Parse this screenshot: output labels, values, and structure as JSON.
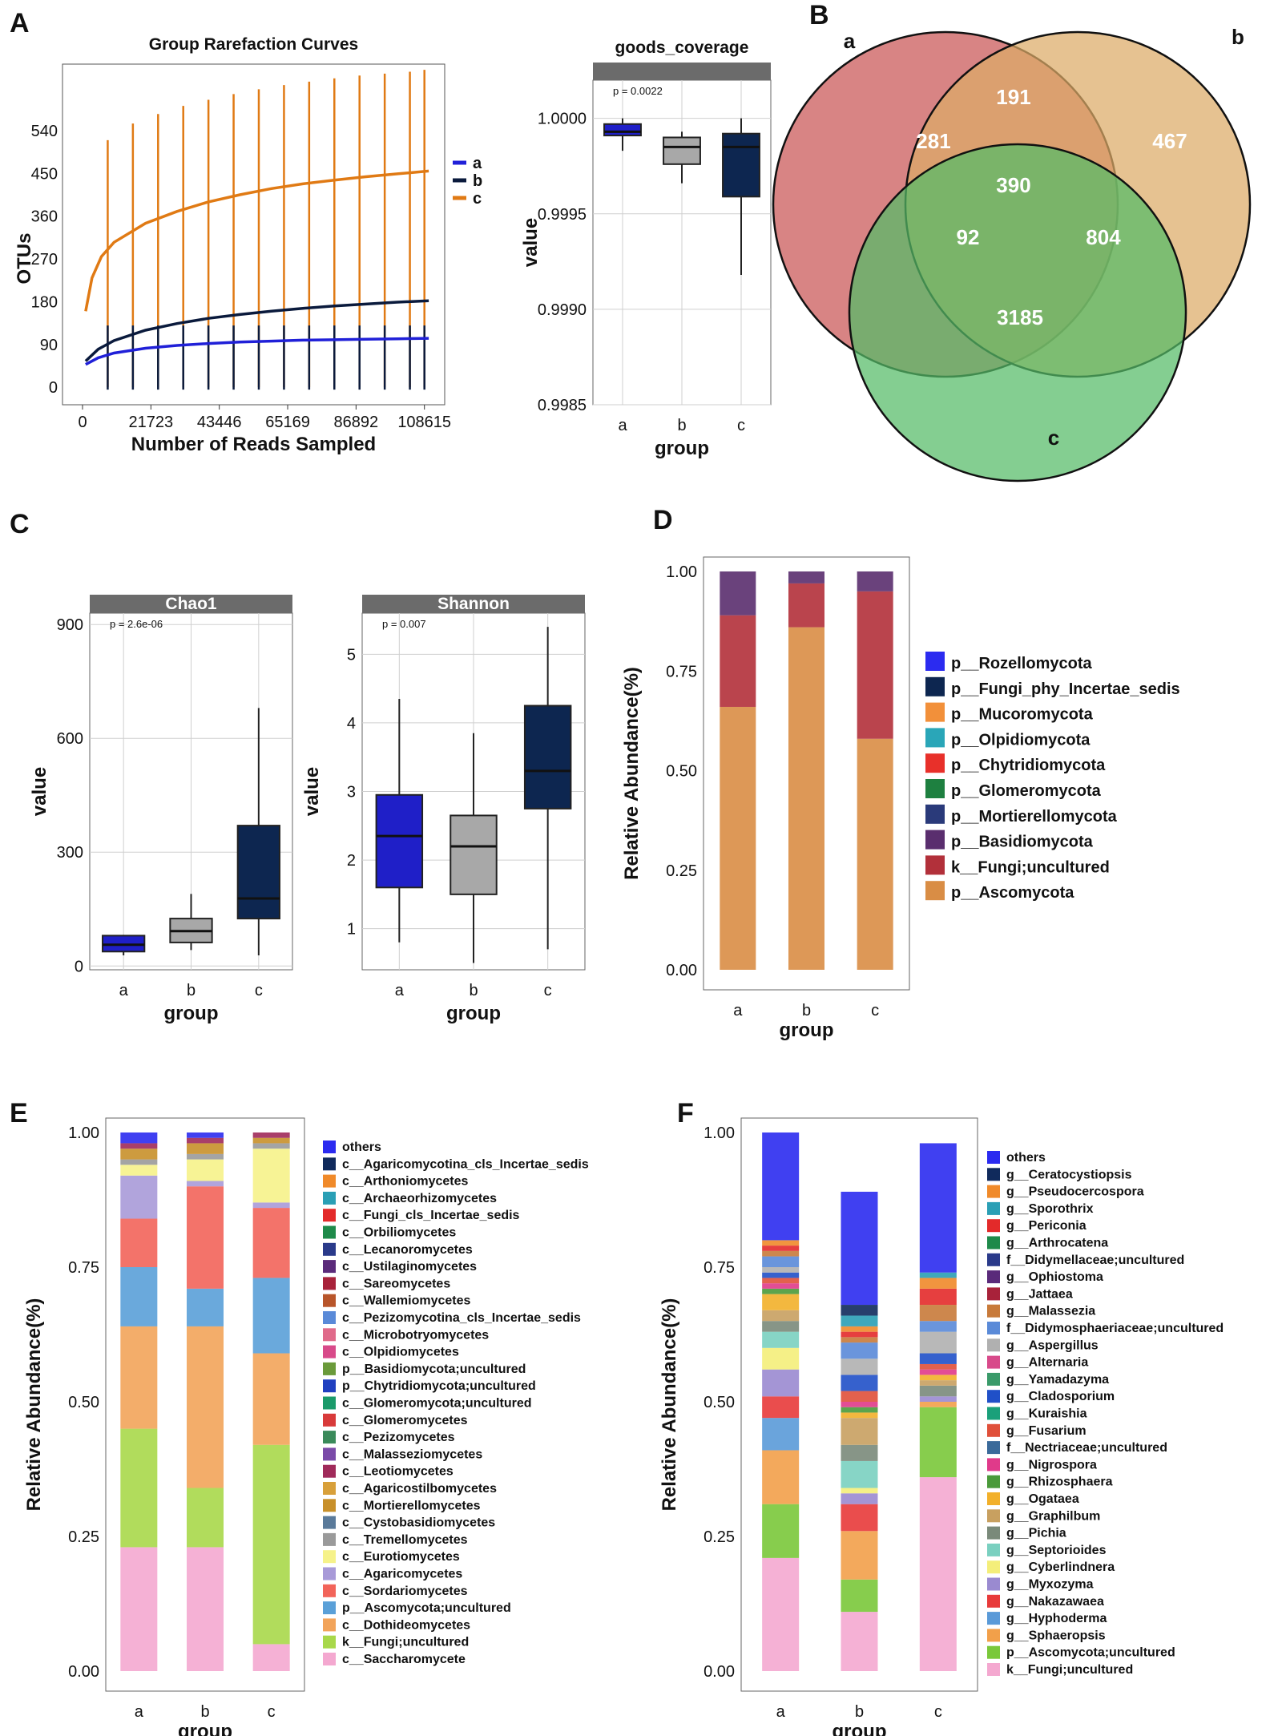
{
  "panels": [
    "A",
    "B",
    "C",
    "D",
    "E",
    "F"
  ],
  "chart_data": [
    {
      "id": "A1",
      "type": "line",
      "title": "Group Rarefaction Curves",
      "xlabel": "Number of Reads Sampled",
      "ylabel": "OTUs",
      "x_ticks": [
        0,
        21723,
        43446,
        65169,
        86892,
        108615
      ],
      "y_ticks": [
        0,
        90,
        180,
        270,
        360,
        450,
        540
      ],
      "xlim": [
        0,
        112000
      ],
      "ylim": [
        -20,
        680
      ],
      "series": [
        {
          "name": "a",
          "color": "#2020d8",
          "x": [
            1000,
            5000,
            10000,
            20000,
            30000,
            40000,
            50000,
            60000,
            70000,
            80000,
            90000,
            100000,
            110000
          ],
          "y": [
            48,
            62,
            72,
            82,
            88,
            92,
            95,
            97,
            99,
            100,
            101,
            102,
            103
          ]
        },
        {
          "name": "b",
          "color": "#0a1a3c",
          "x": [
            1000,
            5000,
            10000,
            20000,
            30000,
            40000,
            50000,
            60000,
            70000,
            80000,
            90000,
            100000,
            110000
          ],
          "y": [
            55,
            80,
            98,
            120,
            134,
            145,
            153,
            160,
            166,
            171,
            175,
            179,
            182
          ]
        },
        {
          "name": "c",
          "color": "#e07a14",
          "x": [
            1000,
            3000,
            6000,
            10000,
            20000,
            30000,
            40000,
            50000,
            60000,
            70000,
            80000,
            90000,
            100000,
            110000
          ],
          "y": [
            160,
            230,
            275,
            305,
            345,
            370,
            390,
            405,
            418,
            428,
            436,
            443,
            449,
            455
          ]
        }
      ],
      "error_bars": {
        "x": [
          8000,
          16000,
          24000,
          32000,
          40000,
          48000,
          56000,
          64000,
          72000,
          80000,
          88000,
          96000,
          104000,
          108615
        ],
        "c_top": [
          520,
          555,
          575,
          592,
          605,
          617,
          627,
          636,
          643,
          650,
          656,
          660,
          664,
          668
        ],
        "bottom": [
          0,
          0,
          0,
          0,
          0,
          0,
          0,
          0,
          0,
          0,
          0,
          0,
          0,
          0
        ]
      }
    },
    {
      "id": "A2",
      "type": "box",
      "title": "goods_coverage",
      "xlabel": "group",
      "ylabel": "value",
      "annotation": "p = 0.0022",
      "categories": [
        "a",
        "b",
        "c"
      ],
      "y_ticks": [
        "1.0000",
        "0.9995",
        "0.9990",
        "0.9985"
      ],
      "ylim": [
        0.9985,
        1.0002
      ],
      "boxes": [
        {
          "name": "a",
          "color": "#1f1fc8",
          "min": 0.99983,
          "q1": 0.99991,
          "median": 0.99993,
          "q3": 0.99997,
          "max": 1.0
        },
        {
          "name": "b",
          "color": "#a8a8a8",
          "min": 0.99966,
          "q1": 0.99976,
          "median": 0.99985,
          "q3": 0.9999,
          "max": 0.99993
        },
        {
          "name": "c",
          "color": "#0d2650",
          "min": 0.99918,
          "q1": 0.99959,
          "median": 0.99985,
          "q3": 0.99992,
          "max": 1.0
        }
      ]
    },
    {
      "id": "B",
      "type": "venn",
      "sets": [
        {
          "name": "a",
          "color": "#c95454"
        },
        {
          "name": "b",
          "color": "#ddaa66"
        },
        {
          "name": "c",
          "color": "#55bb66"
        }
      ],
      "regions": [
        {
          "key": "a_only",
          "value": "281"
        },
        {
          "key": "ab",
          "value": "191"
        },
        {
          "key": "b_only",
          "value": "467"
        },
        {
          "key": "abc",
          "value": "390"
        },
        {
          "key": "ac",
          "value": "92"
        },
        {
          "key": "bc",
          "value": "804"
        },
        {
          "key": "c_only",
          "value": "3185"
        }
      ]
    },
    {
      "id": "C1",
      "type": "box",
      "title": "Chao1",
      "xlabel": "group",
      "ylabel": "value",
      "annotation": "p = 2.6e-06",
      "categories": [
        "a",
        "b",
        "c"
      ],
      "y_ticks": [
        0,
        300,
        600,
        900
      ],
      "ylim": [
        -10,
        930
      ],
      "boxes": [
        {
          "name": "a",
          "color": "#1f1fc8",
          "min": 28,
          "q1": 38,
          "median": 56,
          "q3": 80,
          "max": 82
        },
        {
          "name": "b",
          "color": "#a8a8a8",
          "min": 42,
          "q1": 62,
          "median": 92,
          "q3": 125,
          "max": 190
        },
        {
          "name": "c",
          "color": "#0d2650",
          "min": 28,
          "q1": 125,
          "median": 178,
          "q3": 370,
          "max": 680
        }
      ]
    },
    {
      "id": "C2",
      "type": "box",
      "title": "Shannon",
      "xlabel": "group",
      "ylabel": "value",
      "annotation": "p = 0.007",
      "categories": [
        "a",
        "b",
        "c"
      ],
      "y_ticks": [
        1,
        2,
        3,
        4,
        5
      ],
      "ylim": [
        0.4,
        5.6
      ],
      "boxes": [
        {
          "name": "a",
          "color": "#1f1fc8",
          "min": 0.8,
          "q1": 1.6,
          "median": 2.35,
          "q3": 2.95,
          "max": 4.35
        },
        {
          "name": "b",
          "color": "#a8a8a8",
          "min": 0.5,
          "q1": 1.5,
          "median": 2.2,
          "q3": 2.65,
          "max": 3.85
        },
        {
          "name": "c",
          "color": "#0d2650",
          "min": 0.7,
          "q1": 2.75,
          "median": 3.3,
          "q3": 4.25,
          "max": 5.4
        }
      ]
    },
    {
      "id": "D",
      "type": "stacked_bar",
      "xlabel": "group",
      "ylabel": "Relative Abundance(%)",
      "categories": [
        "a",
        "b",
        "c"
      ],
      "y_ticks": [
        "0.00",
        "0.25",
        "0.50",
        "0.75",
        "1.00"
      ],
      "ylim": [
        0,
        1
      ],
      "legend": [
        {
          "name": "p__Rozellomycota",
          "color": "#2b2bf0"
        },
        {
          "name": "p__Fungi_phy_Incertae_sedis",
          "color": "#0d2650"
        },
        {
          "name": "p__Mucoromycota",
          "color": "#f2903a"
        },
        {
          "name": "p__Olpidiomycota",
          "color": "#2aa6b8"
        },
        {
          "name": "p__Chytridiomycota",
          "color": "#e8302a"
        },
        {
          "name": "p__Glomeromycota",
          "color": "#1e8040"
        },
        {
          "name": "p__Mortierellomycota",
          "color": "#2a3a7a"
        },
        {
          "name": "p__Basidiomycota",
          "color": "#5a2e6e"
        },
        {
          "name": "k__Fungi;uncultured",
          "color": "#b2303a"
        },
        {
          "name": "p__Ascomycota",
          "color": "#d98d45"
        }
      ],
      "stacks": [
        {
          "name": "p__Ascomycota",
          "values": [
            0.66,
            0.86,
            0.58
          ]
        },
        {
          "name": "k__Fungi;uncultured",
          "values": [
            0.23,
            0.11,
            0.37
          ]
        },
        {
          "name": "p__Basidiomycota",
          "values": [
            0.11,
            0.03,
            0.05
          ]
        }
      ]
    },
    {
      "id": "E",
      "type": "stacked_bar",
      "xlabel": "group",
      "ylabel": "Relative Abundance(%)",
      "categories": [
        "a",
        "b",
        "c"
      ],
      "y_ticks": [
        "0.00",
        "0.25",
        "0.50",
        "0.75",
        "1.00"
      ],
      "ylim": [
        0,
        1
      ],
      "legend": [
        {
          "name": "others",
          "color": "#2b2bf0"
        },
        {
          "name": "c__Agaricomycotina_cls_Incertae_sedis",
          "color": "#102a5c"
        },
        {
          "name": "c__Arthoniomycetes",
          "color": "#f08a2a"
        },
        {
          "name": "c__Archaeorhizomycetes",
          "color": "#2a9fb5"
        },
        {
          "name": "c__Fungi_cls_Incertae_sedis",
          "color": "#e32a2a"
        },
        {
          "name": "c__Orbiliomycetes",
          "color": "#1e8a4a"
        },
        {
          "name": "c__Lecanoromycetes",
          "color": "#2a3a8a"
        },
        {
          "name": "c__Ustilaginomycetes",
          "color": "#5a2a7a"
        },
        {
          "name": "c__Sareomycetes",
          "color": "#a8223a"
        },
        {
          "name": "c__Wallemiomycetes",
          "color": "#b8552a"
        },
        {
          "name": "c__Pezizomycotina_cls_Incertae_sedis",
          "color": "#5a8ad8"
        },
        {
          "name": "c__Microbotryomycetes",
          "color": "#e06a8a"
        },
        {
          "name": "c__Olpidiomycetes",
          "color": "#d84a8a"
        },
        {
          "name": "p__Basidiomycota;uncultured",
          "color": "#6a9a3a"
        },
        {
          "name": "p__Chytridiomycota;uncultured",
          "color": "#2040c0"
        },
        {
          "name": "c__Glomeromycota;uncultured",
          "color": "#1a9a6a"
        },
        {
          "name": "c__Glomeromycetes",
          "color": "#d83a3a"
        },
        {
          "name": "c__Pezizomycetes",
          "color": "#3a8a5a"
        },
        {
          "name": "c__Malasseziomycetes",
          "color": "#7a4aa8"
        },
        {
          "name": "c__Leotiomycetes",
          "color": "#a02a5a"
        },
        {
          "name": "c__Agaricostilbomycetes",
          "color": "#d8a03a"
        },
        {
          "name": "c__Mortierellomycetes",
          "color": "#c8902a"
        },
        {
          "name": "c__Cystobasidiomycetes",
          "color": "#5a7a9a"
        },
        {
          "name": "c__Tremellomycetes",
          "color": "#9a9a9a"
        },
        {
          "name": "c__Eurotiomycetes",
          "color": "#f6f28a"
        },
        {
          "name": "c__Agaricomycetes",
          "color": "#a89ad8"
        },
        {
          "name": "c__Sordariomycetes",
          "color": "#f2645a"
        },
        {
          "name": "p__Ascomycota;uncultured",
          "color": "#5aa0d8"
        },
        {
          "name": "c__Dothideomycetes",
          "color": "#f2a45a"
        },
        {
          "name": "k__Fungi;uncultured",
          "color": "#a8d84a"
        },
        {
          "name": "c__Saccharomycete",
          "color": "#f4a8d0"
        }
      ],
      "stacks": [
        {
          "name": "c__Saccharomycete",
          "values": [
            0.23,
            0.23,
            0.05
          ]
        },
        {
          "name": "k__Fungi;uncultured",
          "values": [
            0.22,
            0.11,
            0.37
          ]
        },
        {
          "name": "c__Dothideomycetes",
          "values": [
            0.19,
            0.3,
            0.17
          ]
        },
        {
          "name": "p__Ascomycota;uncultured",
          "values": [
            0.11,
            0.07,
            0.14
          ]
        },
        {
          "name": "c__Sordariomycetes",
          "values": [
            0.09,
            0.19,
            0.13
          ]
        },
        {
          "name": "c__Agaricomycetes",
          "values": [
            0.08,
            0.01,
            0.01
          ]
        },
        {
          "name": "c__Eurotiomycetes",
          "values": [
            0.02,
            0.04,
            0.1
          ]
        },
        {
          "name": "c__Tremellomycetes",
          "values": [
            0.01,
            0.01,
            0.01
          ]
        },
        {
          "name": "c__Mortierellomycetes",
          "values": [
            0.02,
            0.02,
            0.01
          ]
        },
        {
          "name": "c__Leotiomycetes",
          "values": [
            0.01,
            0.01,
            0.01
          ]
        },
        {
          "name": "others",
          "values": [
            0.02,
            0.01,
            0.0
          ]
        }
      ]
    },
    {
      "id": "F",
      "type": "stacked_bar",
      "xlabel": "group",
      "ylabel": "Relative Abundance(%)",
      "categories": [
        "a",
        "b",
        "c"
      ],
      "y_ticks": [
        "0.00",
        "0.25",
        "0.50",
        "0.75",
        "1.00"
      ],
      "ylim": [
        0,
        1
      ],
      "legend": [
        {
          "name": "others",
          "color": "#2b2bf0"
        },
        {
          "name": "g__Ceratocystiopsis",
          "color": "#102a5c"
        },
        {
          "name": "g__Pseudocercospora",
          "color": "#f08a2a"
        },
        {
          "name": "g__Sporothrix",
          "color": "#2a9fb5"
        },
        {
          "name": "g__Periconia",
          "color": "#e32a2a"
        },
        {
          "name": "g__Arthrocatena",
          "color": "#1e8a4a"
        },
        {
          "name": "f__Didymellaceae;uncultured",
          "color": "#2a3a8a"
        },
        {
          "name": "g__Ophiostoma",
          "color": "#5a2a7a"
        },
        {
          "name": "g__Jattaea",
          "color": "#a8223a"
        },
        {
          "name": "g__Malassezia",
          "color": "#c87a3a"
        },
        {
          "name": "f__Didymosphaeriaceae;uncultured",
          "color": "#5a8ad8"
        },
        {
          "name": "g__Aspergillus",
          "color": "#b0b0b0"
        },
        {
          "name": "g__Alternaria",
          "color": "#d84a8a"
        },
        {
          "name": "g__Yamadazyma",
          "color": "#3a9a6a"
        },
        {
          "name": "g__Cladosporium",
          "color": "#2050c8"
        },
        {
          "name": "g__Kuraishia",
          "color": "#1aa07a"
        },
        {
          "name": "g__Fusarium",
          "color": "#e0503a"
        },
        {
          "name": "f__Nectriaceae;uncultured",
          "color": "#3a6a9a"
        },
        {
          "name": "g__Nigrospora",
          "color": "#e03a8a"
        },
        {
          "name": "g__Rhizosphaera",
          "color": "#4a9a3a"
        },
        {
          "name": "g__Ogataea",
          "color": "#f2b02a"
        },
        {
          "name": "g__Graphilbum",
          "color": "#c8a060"
        },
        {
          "name": "g__Pichia",
          "color": "#7a8a7a"
        },
        {
          "name": "g__Septorioides",
          "color": "#7ad0c0"
        },
        {
          "name": "g__Cyberlindnera",
          "color": "#f4ee7a"
        },
        {
          "name": "g__Myxozyma",
          "color": "#9a8ad0"
        },
        {
          "name": "g__Nakazawaea",
          "color": "#e83a3a"
        },
        {
          "name": "g__Hyphoderma",
          "color": "#5a9ad8"
        },
        {
          "name": "g__Sphaeropsis",
          "color": "#f2a04a"
        },
        {
          "name": "p__Ascomycota;uncultured",
          "color": "#7ac83a"
        },
        {
          "name": "k__Fungi;uncultured",
          "color": "#f4a8d0"
        }
      ],
      "stacks": [
        {
          "name": "k__Fungi;uncultured",
          "values": [
            0.21,
            0.11,
            0.36
          ]
        },
        {
          "name": "p__Ascomycota;uncultured",
          "values": [
            0.1,
            0.06,
            0.13
          ]
        },
        {
          "name": "g__Sphaeropsis",
          "values": [
            0.1,
            0.09,
            0.01
          ]
        },
        {
          "name": "g__Hyphoderma",
          "values": [
            0.06,
            0.0,
            0.0
          ]
        },
        {
          "name": "g__Nakazawaea",
          "values": [
            0.04,
            0.05,
            0.0
          ]
        },
        {
          "name": "g__Myxozyma",
          "values": [
            0.05,
            0.02,
            0.01
          ]
        },
        {
          "name": "g__Cyberlindnera",
          "values": [
            0.04,
            0.01,
            0.0
          ]
        },
        {
          "name": "g__Septorioides",
          "values": [
            0.03,
            0.05,
            0.0
          ]
        },
        {
          "name": "g__Pichia",
          "values": [
            0.02,
            0.03,
            0.02
          ]
        },
        {
          "name": "g__Graphilbum",
          "values": [
            0.02,
            0.05,
            0.01
          ]
        },
        {
          "name": "g__Ogataea",
          "values": [
            0.03,
            0.01,
            0.01
          ]
        },
        {
          "name": "g__Rhizosphaera",
          "values": [
            0.01,
            0.01,
            0.0
          ]
        },
        {
          "name": "g__Nigrospora",
          "values": [
            0.01,
            0.01,
            0.01
          ]
        },
        {
          "name": "g__Fusarium",
          "values": [
            0.01,
            0.02,
            0.01
          ]
        },
        {
          "name": "g__Cladosporium",
          "values": [
            0.01,
            0.03,
            0.02
          ]
        },
        {
          "name": "g__Aspergillus",
          "values": [
            0.01,
            0.03,
            0.04
          ]
        },
        {
          "name": "f__Didymosphaeriaceae;uncultured",
          "values": [
            0.02,
            0.03,
            0.02
          ]
        },
        {
          "name": "g__Malassezia",
          "values": [
            0.01,
            0.01,
            0.03
          ]
        },
        {
          "name": "g__Periconia",
          "values": [
            0.01,
            0.01,
            0.03
          ]
        },
        {
          "name": "g__Pseudocercospora",
          "values": [
            0.01,
            0.01,
            0.02
          ]
        },
        {
          "name": "g__Sporothrix",
          "values": [
            0.0,
            0.02,
            0.01
          ]
        },
        {
          "name": "g__Ceratocystiopsis",
          "values": [
            0.0,
            0.02,
            0.0
          ]
        },
        {
          "name": "others",
          "values": [
            0.2,
            0.21,
            0.24
          ]
        }
      ]
    }
  ]
}
